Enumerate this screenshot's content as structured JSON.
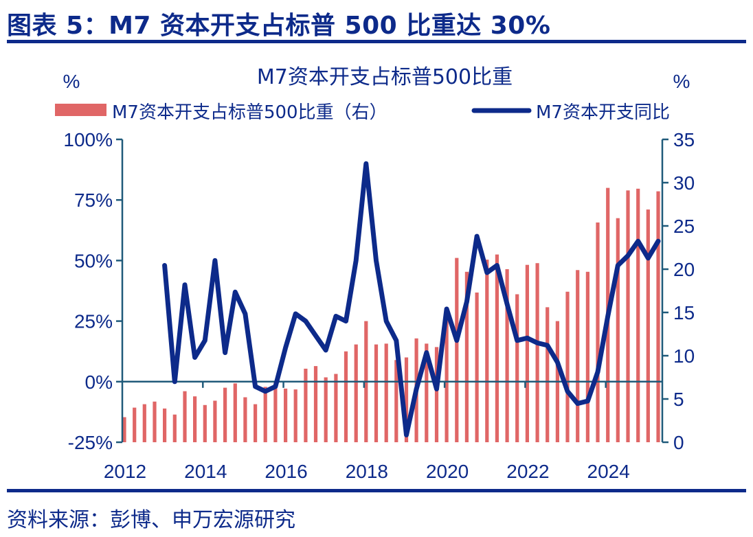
{
  "figure": {
    "title": "图表 5：M7 资本开支占标普 500 比重达 30%",
    "source": "资料来源：彭博、申万宏源研究"
  },
  "chart_data": {
    "type": "bar+line",
    "title": "M7资本开支占标普500比重",
    "left_axis": {
      "unit_label": "%",
      "ylim": [
        -25,
        100
      ],
      "ticks": [
        -25,
        0,
        25,
        50,
        75,
        100
      ],
      "tick_labels": [
        "-25%",
        "0%",
        "25%",
        "50%",
        "75%",
        "100%"
      ]
    },
    "right_axis": {
      "unit_label": "%",
      "ylim": [
        0,
        35
      ],
      "ticks": [
        0,
        5,
        10,
        15,
        20,
        25,
        30,
        35
      ],
      "tick_labels": [
        "0",
        "5",
        "10",
        "15",
        "20",
        "25",
        "30",
        "35"
      ]
    },
    "x_tick_labels": [
      "2012",
      "2014",
      "2016",
      "2018",
      "2020",
      "2022",
      "2024"
    ],
    "x_start_year": 2012,
    "frequency": "quarterly",
    "legend": {
      "placement": "top",
      "bar_label": "M7资本开支占标普500比重（右）",
      "line_label": "M7资本开支同比"
    },
    "colors": {
      "bar": "#e06666",
      "line": "#0d2a8a",
      "axis": "#1f5a7a"
    },
    "series": [
      {
        "name": "M7资本开支占标普500比重（右）",
        "type": "bar",
        "axis": "right",
        "values": [
          2.9,
          4.0,
          4.4,
          4.7,
          3.9,
          3.2,
          5.9,
          5.3,
          4.3,
          4.8,
          6.3,
          6.8,
          5.2,
          4.4,
          6.4,
          6.9,
          6.2,
          6.1,
          8.5,
          8.8,
          7.5,
          7.9,
          10.5,
          11.3,
          14.0,
          11.3,
          11.4,
          9.5,
          9.8,
          12.0,
          11.4,
          11.0,
          15.6,
          21.3,
          19.7,
          17.3,
          21.1,
          21.7,
          20.0,
          17.1,
          20.5,
          20.7,
          15.6,
          14.0,
          17.4,
          19.9,
          19.7,
          25.4,
          29.4,
          25.9,
          29.1,
          29.3,
          26.9,
          29.0
        ]
      },
      {
        "name": "M7资本开支同比",
        "type": "line",
        "axis": "left",
        "start_index": 4,
        "values": [
          48,
          0,
          40,
          10,
          17,
          50,
          12,
          37,
          28,
          -2,
          -4,
          -2,
          14,
          28,
          25,
          19,
          13,
          27,
          25,
          50,
          90,
          50,
          25,
          17,
          -22,
          -3,
          12,
          -3,
          30,
          17,
          33,
          60,
          45,
          48,
          32,
          17,
          18,
          16,
          15,
          8,
          -4,
          -9,
          -8,
          4,
          27,
          48,
          52,
          58,
          51,
          58
        ]
      }
    ]
  }
}
